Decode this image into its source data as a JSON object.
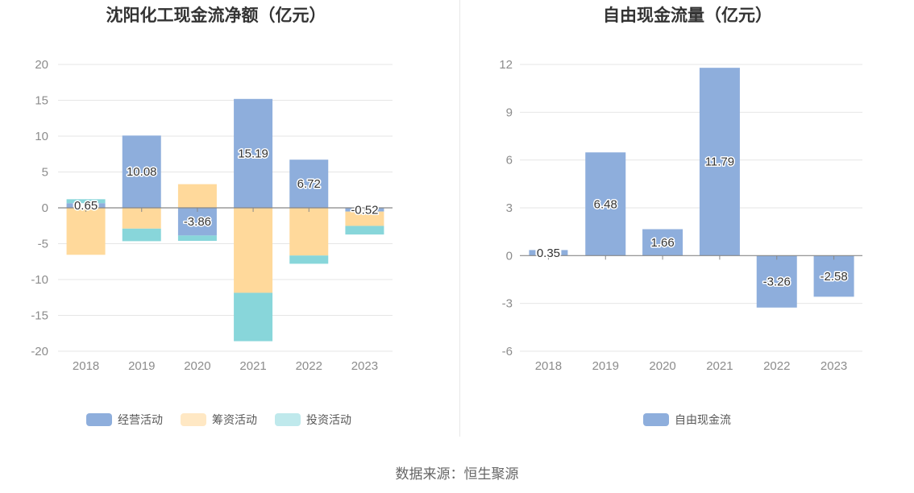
{
  "chart_data": [
    {
      "type": "bar",
      "stacked": true,
      "title": "沈阳化工现金流净额（亿元）",
      "categories": [
        "2018",
        "2019",
        "2020",
        "2021",
        "2022",
        "2023"
      ],
      "ylim": [
        -20,
        20
      ],
      "yticks": [
        20,
        15,
        10,
        5,
        0,
        -5,
        -10,
        -15,
        -20
      ],
      "grid": true,
      "legend_position": "bottom",
      "series": [
        {
          "name": "经营活动",
          "color": "#8eaedc",
          "values": [
            0.65,
            10.08,
            -3.86,
            15.19,
            6.72,
            -0.52
          ]
        },
        {
          "name": "筹资活动",
          "color": "#ffd99b",
          "legend_color": "#ffe8c4",
          "values": [
            -6.55,
            -2.9,
            3.3,
            -11.85,
            -6.65,
            -2.0
          ]
        },
        {
          "name": "投资活动",
          "color": "#88d6da",
          "legend_color": "#bfe9ec",
          "values": [
            0.55,
            -1.75,
            -0.75,
            -6.75,
            -1.15,
            -1.2
          ]
        }
      ],
      "data_labels": [
        "0.65",
        "10.08",
        "-3.86",
        "15.19",
        "6.72",
        "-0.52"
      ]
    },
    {
      "type": "bar",
      "title": "自由现金流量（亿元）",
      "categories": [
        "2018",
        "2019",
        "2020",
        "2021",
        "2022",
        "2023"
      ],
      "ylim": [
        -6,
        12
      ],
      "yticks": [
        12,
        9,
        6,
        3,
        0,
        -3,
        -6
      ],
      "grid": true,
      "legend_position": "bottom",
      "series": [
        {
          "name": "自由现金流",
          "color": "#8eaedc",
          "values": [
            0.35,
            6.48,
            1.66,
            11.79,
            -3.26,
            -2.58
          ]
        }
      ],
      "data_labels": [
        "0.35",
        "6.48",
        "1.66",
        "11.79",
        "-3.26",
        "-2.58"
      ]
    }
  ],
  "source": "数据来源：恒生聚源"
}
